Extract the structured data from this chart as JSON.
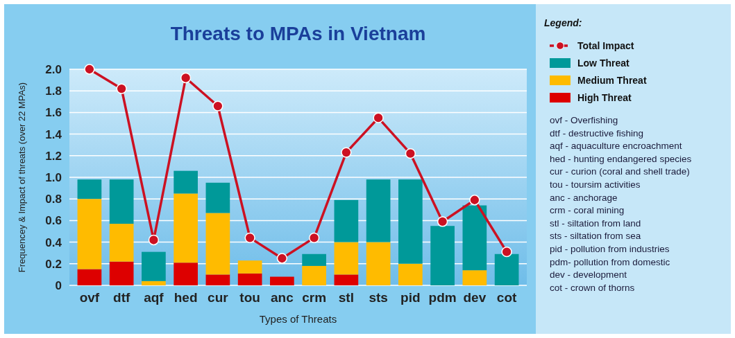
{
  "chart_data": {
    "type": "bar",
    "stacked": true,
    "title": "Threats to MPAs in Vietnam",
    "xlabel": "Types of Threats",
    "ylabel": "Frequencey & Impact of threats (over 22 MPAs)",
    "categories": [
      "ovf",
      "dtf",
      "aqf",
      "hed",
      "cur",
      "tou",
      "anc",
      "crm",
      "stl",
      "sts",
      "pid",
      "pdm",
      "dev",
      "cot"
    ],
    "series": [
      {
        "name": "Total Impact",
        "type": "line",
        "color": "#cc1122",
        "values": [
          2.0,
          1.82,
          0.42,
          1.92,
          1.66,
          0.44,
          0.25,
          0.44,
          1.23,
          1.55,
          1.22,
          0.59,
          0.79,
          0.31
        ]
      },
      {
        "name": "High Threat",
        "color": "#dd0000",
        "values": [
          0.15,
          0.22,
          0,
          0.21,
          0.1,
          0.11,
          0.08,
          0,
          0.1,
          0,
          0,
          0,
          0,
          0
        ]
      },
      {
        "name": "Medium Threat",
        "color": "#ffbb00",
        "values": [
          0.65,
          0.35,
          0.04,
          0.64,
          0.57,
          0.12,
          0,
          0.18,
          0.3,
          0.4,
          0.2,
          0,
          0.14,
          0
        ]
      },
      {
        "name": "Low Threat",
        "color": "#009999",
        "values": [
          0.18,
          0.41,
          0.27,
          0.21,
          0.28,
          0,
          0,
          0.11,
          0.39,
          0.58,
          0.78,
          0.55,
          0.6,
          0.29
        ]
      }
    ],
    "ylim": [
      0,
      2.0
    ],
    "yticks": [
      0,
      {
        "value": 0.2,
        "label": "0.2"
      },
      {
        "value": 0.4,
        "label": "0.4"
      },
      {
        "value": 0.6,
        "label": "0.6"
      },
      {
        "value": 0.8,
        "label": "0.8"
      },
      {
        "value": 1.0,
        "label": "1.0"
      },
      {
        "value": 1.2,
        "label": "1.2"
      },
      {
        "value": 1.4,
        "label": "1.4"
      },
      {
        "value": 1.6,
        "label": "1.6"
      },
      {
        "value": 1.8,
        "label": "1.8"
      },
      {
        "value": 2.0,
        "label": "2.0"
      }
    ],
    "grid": "y",
    "marker": "circle",
    "line_style": "solid",
    "legend": "right",
    "legend_title": "Legend:",
    "annotations": [
      "ovf  -  Overfishing",
      "dtf  -  destructive fishing",
      "aqf  -  aquaculture encroachment",
      "hed  -  hunting endangered species",
      "cur  -  curion (coral and shell trade)",
      "tou  -  toursim activities",
      "anc  -  anchorage",
      "crm  -  coral mining",
      "stl  -  siltation from land",
      "sts  -  siltation from sea",
      "pid  -  pollution from industries",
      "pdm-  pollution from domestic",
      "dev  -  development",
      "cot  -  crown of thorns"
    ]
  }
}
